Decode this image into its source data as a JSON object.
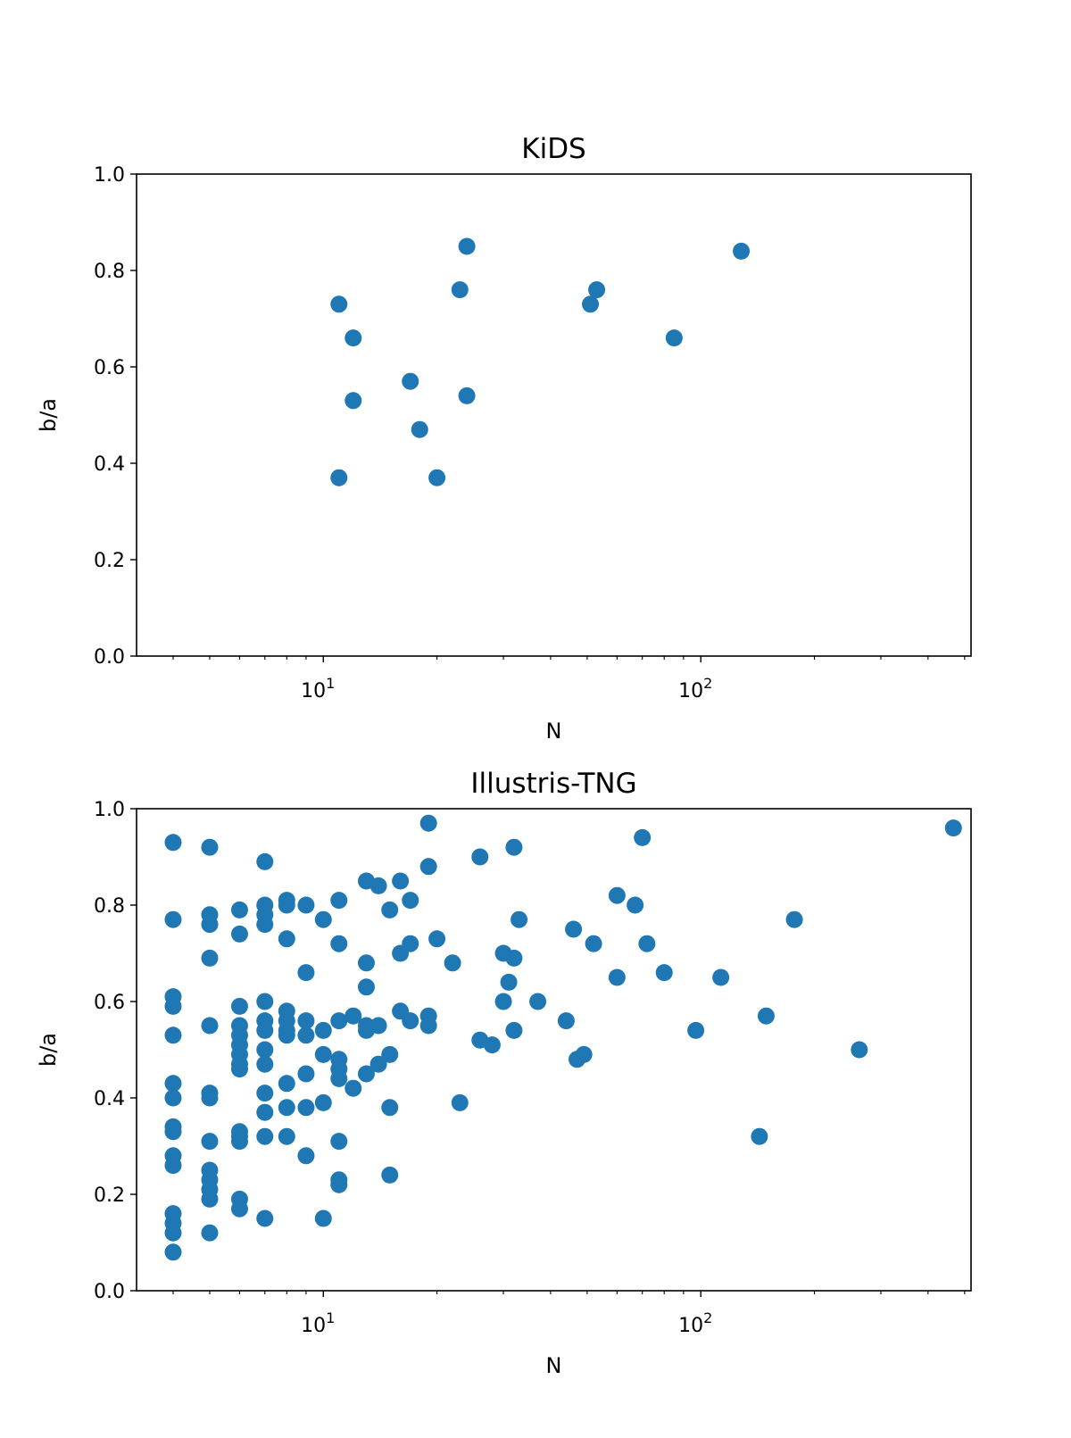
{
  "chart_data": [
    {
      "type": "scatter",
      "title": "KiDS",
      "xlabel": "N",
      "ylabel": "b/a",
      "xscale": "log",
      "xlim": [
        3.2,
        520
      ],
      "ylim": [
        0.0,
        1.0
      ],
      "xticks": [
        {
          "base": "10",
          "exp": "1",
          "value": 10
        },
        {
          "base": "10",
          "exp": "2",
          "value": 100
        }
      ],
      "yticks": [
        "0.0",
        "0.2",
        "0.4",
        "0.6",
        "0.8",
        "1.0"
      ],
      "grid": false,
      "color": "#1f77b4",
      "points": [
        [
          11,
          0.73
        ],
        [
          11,
          0.37
        ],
        [
          12,
          0.66
        ],
        [
          12,
          0.53
        ],
        [
          17,
          0.57
        ],
        [
          18,
          0.47
        ],
        [
          20,
          0.37
        ],
        [
          23,
          0.76
        ],
        [
          24,
          0.85
        ],
        [
          24,
          0.54
        ],
        [
          51,
          0.73
        ],
        [
          53,
          0.76
        ],
        [
          85,
          0.66
        ],
        [
          128,
          0.84
        ]
      ]
    },
    {
      "type": "scatter",
      "title": "Illustris-TNG",
      "xlabel": "N",
      "ylabel": "b/a",
      "xscale": "log",
      "xlim": [
        3.2,
        520
      ],
      "ylim": [
        0.0,
        1.0
      ],
      "xticks": [
        {
          "base": "10",
          "exp": "1",
          "value": 10
        },
        {
          "base": "10",
          "exp": "2",
          "value": 100
        }
      ],
      "yticks": [
        "0.0",
        "0.2",
        "0.4",
        "0.6",
        "0.8",
        "1.0"
      ],
      "grid": false,
      "color": "#1f77b4",
      "points": [
        [
          4,
          0.93
        ],
        [
          4,
          0.77
        ],
        [
          4,
          0.61
        ],
        [
          4,
          0.59
        ],
        [
          4,
          0.53
        ],
        [
          4,
          0.43
        ],
        [
          4,
          0.4
        ],
        [
          4,
          0.34
        ],
        [
          4,
          0.33
        ],
        [
          4,
          0.28
        ],
        [
          4,
          0.26
        ],
        [
          4,
          0.16
        ],
        [
          4,
          0.14
        ],
        [
          4,
          0.12
        ],
        [
          4,
          0.08
        ],
        [
          5,
          0.92
        ],
        [
          5,
          0.78
        ],
        [
          5,
          0.76
        ],
        [
          5,
          0.69
        ],
        [
          5,
          0.55
        ],
        [
          5,
          0.41
        ],
        [
          5,
          0.4
        ],
        [
          5,
          0.31
        ],
        [
          5,
          0.25
        ],
        [
          5,
          0.23
        ],
        [
          5,
          0.21
        ],
        [
          5,
          0.19
        ],
        [
          5,
          0.12
        ],
        [
          6,
          0.79
        ],
        [
          6,
          0.74
        ],
        [
          6,
          0.59
        ],
        [
          6,
          0.55
        ],
        [
          6,
          0.53
        ],
        [
          6,
          0.51
        ],
        [
          6,
          0.49
        ],
        [
          6,
          0.47
        ],
        [
          6,
          0.46
        ],
        [
          6,
          0.33
        ],
        [
          6,
          0.32
        ],
        [
          6,
          0.31
        ],
        [
          6,
          0.19
        ],
        [
          6,
          0.17
        ],
        [
          7,
          0.89
        ],
        [
          7,
          0.8
        ],
        [
          7,
          0.78
        ],
        [
          7,
          0.76
        ],
        [
          7,
          0.6
        ],
        [
          7,
          0.56
        ],
        [
          7,
          0.54
        ],
        [
          7,
          0.5
        ],
        [
          7,
          0.47
        ],
        [
          7,
          0.41
        ],
        [
          7,
          0.37
        ],
        [
          7,
          0.32
        ],
        [
          7,
          0.15
        ],
        [
          8,
          0.81
        ],
        [
          8,
          0.8
        ],
        [
          8,
          0.73
        ],
        [
          8,
          0.58
        ],
        [
          8,
          0.56
        ],
        [
          8,
          0.54
        ],
        [
          8,
          0.53
        ],
        [
          8,
          0.43
        ],
        [
          8,
          0.38
        ],
        [
          8,
          0.32
        ],
        [
          9,
          0.8
        ],
        [
          9,
          0.66
        ],
        [
          9,
          0.56
        ],
        [
          9,
          0.53
        ],
        [
          9,
          0.45
        ],
        [
          9,
          0.38
        ],
        [
          9,
          0.28
        ],
        [
          10,
          0.77
        ],
        [
          10,
          0.54
        ],
        [
          10,
          0.49
        ],
        [
          10,
          0.39
        ],
        [
          10,
          0.15
        ],
        [
          11,
          0.81
        ],
        [
          11,
          0.72
        ],
        [
          11,
          0.56
        ],
        [
          11,
          0.48
        ],
        [
          11,
          0.46
        ],
        [
          11,
          0.44
        ],
        [
          11,
          0.31
        ],
        [
          11,
          0.23
        ],
        [
          11,
          0.22
        ],
        [
          12,
          0.57
        ],
        [
          12,
          0.42
        ],
        [
          13,
          0.85
        ],
        [
          13,
          0.68
        ],
        [
          13,
          0.63
        ],
        [
          13,
          0.55
        ],
        [
          13,
          0.54
        ],
        [
          13,
          0.45
        ],
        [
          14,
          0.84
        ],
        [
          14,
          0.55
        ],
        [
          14,
          0.47
        ],
        [
          15,
          0.79
        ],
        [
          15,
          0.49
        ],
        [
          15,
          0.38
        ],
        [
          15,
          0.24
        ],
        [
          16,
          0.85
        ],
        [
          16,
          0.7
        ],
        [
          16,
          0.58
        ],
        [
          17,
          0.81
        ],
        [
          17,
          0.72
        ],
        [
          17,
          0.56
        ],
        [
          19,
          0.97
        ],
        [
          19,
          0.88
        ],
        [
          19,
          0.57
        ],
        [
          19,
          0.55
        ],
        [
          20,
          0.73
        ],
        [
          22,
          0.68
        ],
        [
          23,
          0.39
        ],
        [
          26,
          0.9
        ],
        [
          26,
          0.52
        ],
        [
          28,
          0.51
        ],
        [
          30,
          0.7
        ],
        [
          30,
          0.6
        ],
        [
          31,
          0.64
        ],
        [
          32,
          0.92
        ],
        [
          32,
          0.69
        ],
        [
          32,
          0.54
        ],
        [
          33,
          0.77
        ],
        [
          37,
          0.6
        ],
        [
          44,
          0.56
        ],
        [
          46,
          0.75
        ],
        [
          47,
          0.48
        ],
        [
          49,
          0.49
        ],
        [
          52,
          0.72
        ],
        [
          60,
          0.82
        ],
        [
          60,
          0.65
        ],
        [
          67,
          0.8
        ],
        [
          70,
          0.94
        ],
        [
          72,
          0.72
        ],
        [
          80,
          0.66
        ],
        [
          97,
          0.54
        ],
        [
          113,
          0.65
        ],
        [
          143,
          0.32
        ],
        [
          149,
          0.57
        ],
        [
          177,
          0.77
        ],
        [
          263,
          0.5
        ],
        [
          467,
          0.96
        ]
      ]
    }
  ]
}
